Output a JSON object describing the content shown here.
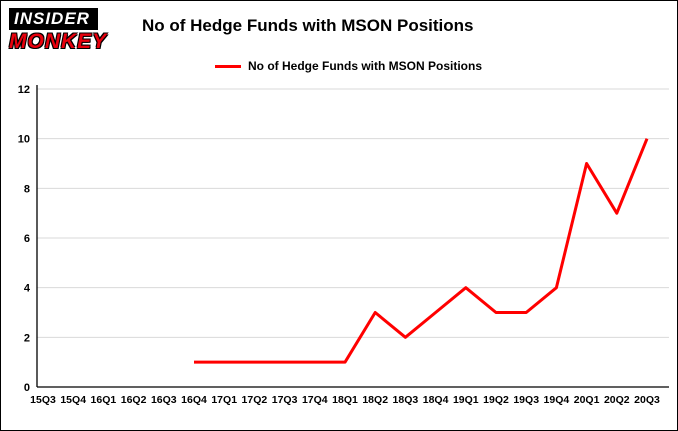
{
  "brand": {
    "name": "Insider Monkey",
    "line1": "INSIDER",
    "line2": "MONKEY"
  },
  "header": {
    "title": "No of Hedge Funds with MSON Positions"
  },
  "legend": {
    "label": "No of Hedge Funds with MSON Positions"
  },
  "colors": {
    "series": "#ff0000",
    "grid": "#d9d9d9",
    "axis": "#000000",
    "background": "#ffffff",
    "brand_red": "#e8000d"
  },
  "chart_data": {
    "type": "line",
    "title": "No of Hedge Funds with MSON Positions",
    "categories": [
      "15Q3",
      "15Q4",
      "16Q1",
      "16Q2",
      "16Q3",
      "16Q4",
      "17Q1",
      "17Q2",
      "17Q3",
      "17Q4",
      "18Q1",
      "18Q2",
      "18Q3",
      "18Q4",
      "19Q1",
      "19Q2",
      "19Q3",
      "19Q4",
      "20Q1",
      "20Q2",
      "20Q3"
    ],
    "series": [
      {
        "name": "No of Hedge Funds with MSON Positions",
        "color": "#ff0000",
        "values": [
          null,
          null,
          null,
          null,
          null,
          1,
          1,
          1,
          1,
          1,
          1,
          3,
          2,
          3,
          4,
          3,
          3,
          4,
          9,
          7,
          10
        ]
      }
    ],
    "xlabel": "",
    "ylabel": "",
    "ylim": [
      0,
      12
    ],
    "yticks": [
      0,
      2,
      4,
      6,
      8,
      10,
      12
    ],
    "grid": true,
    "legend_position": "top"
  }
}
